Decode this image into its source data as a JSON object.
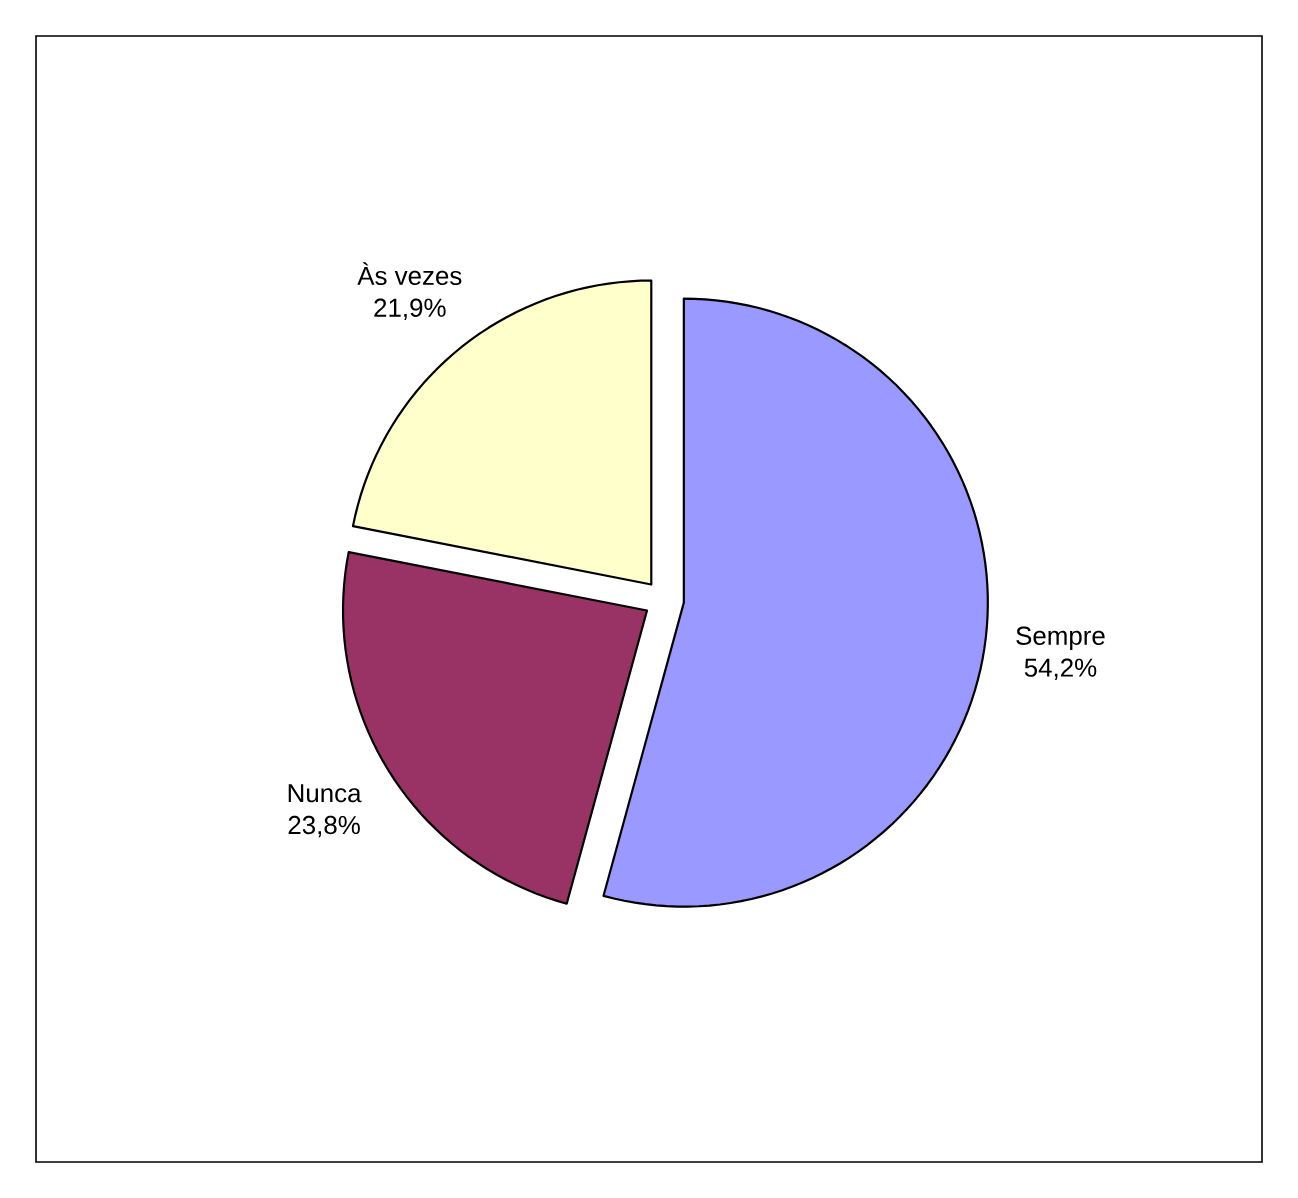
{
  "chart_data": {
    "type": "pie",
    "categories": [
      "Sempre",
      "Nunca",
      "Às vezes"
    ],
    "values": [
      54.2,
      23.8,
      21.9
    ],
    "value_labels": [
      "54,2%",
      "23,8%",
      "21,9%"
    ],
    "colors": [
      "#9999ff",
      "#993366",
      "#ffffcc"
    ],
    "legend": false
  }
}
